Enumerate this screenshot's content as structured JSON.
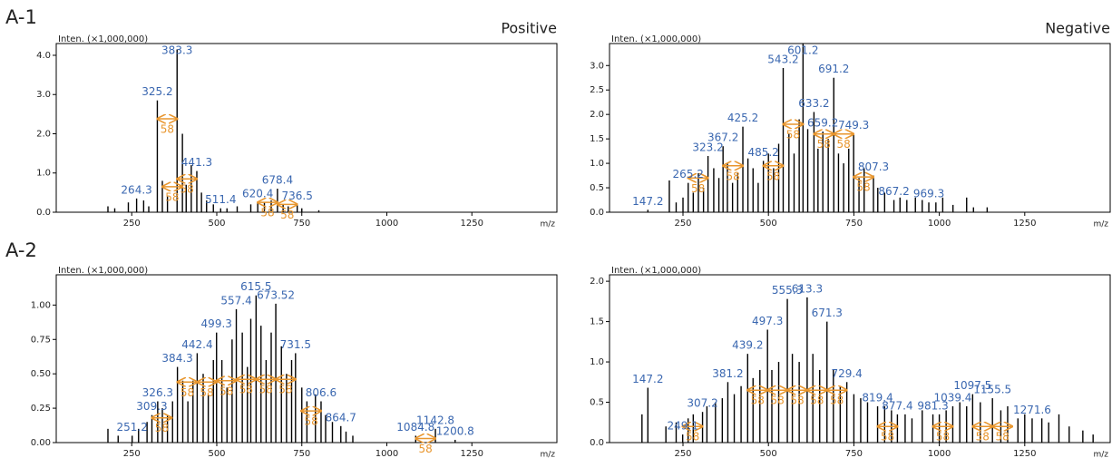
{
  "row_labels": [
    "A-1",
    "A-2"
  ],
  "column_labels": [
    "Positive",
    "Negative"
  ],
  "chart_data": [
    {
      "type": "bar",
      "ylabel": "Inten. (×1,000,000)",
      "xlabel": "m/z",
      "color": "#000000",
      "label_color": "#3a67b0",
      "arrow_color": "#e8962e",
      "xlim": [
        28,
        1500
      ],
      "xticks": [
        250,
        500,
        750,
        1000,
        1250
      ],
      "ylim": [
        0,
        4.3
      ],
      "yticks": [
        {
          "value": 0,
          "label": "0.0"
        },
        {
          "value": 1,
          "label": "1.0"
        },
        {
          "value": 2,
          "label": "2.0"
        },
        {
          "value": 3,
          "label": "3.0"
        },
        {
          "value": 4,
          "label": "4.0"
        }
      ],
      "peaks": {
        "x": [
          264.3,
          325.2,
          383.3,
          441.3,
          511.4,
          620.4,
          678.4,
          736.5
        ],
        "values": [
          0.35,
          2.85,
          4.15,
          1.05,
          0.1,
          0.25,
          0.6,
          0.2
        ]
      },
      "minor_peaks": {
        "x": [
          180,
          200,
          240,
          285,
          300,
          340,
          355,
          399,
          410,
          425,
          455,
          470,
          490,
          530,
          560,
          600,
          640,
          660,
          695,
          710,
          750,
          800
        ],
        "values": [
          0.15,
          0.1,
          0.25,
          0.3,
          0.15,
          0.8,
          0.4,
          2.0,
          0.7,
          1.2,
          0.5,
          0.3,
          0.2,
          0.1,
          0.15,
          0.2,
          0.25,
          0.3,
          0.2,
          0.15,
          0.1,
          0.05
        ]
      },
      "arrows": [
        {
          "from": 325.2,
          "to": 383.3,
          "y": 2.38,
          "label": 58
        },
        {
          "from": 383.3,
          "to": 441.3,
          "y": 0.85,
          "label": 58
        },
        {
          "from": 340,
          "to": 398,
          "y": 0.65,
          "label": 58
        },
        {
          "from": 620.4,
          "to": 678.4,
          "y": 0.25,
          "label": 58
        },
        {
          "from": 678.4,
          "to": 736.5,
          "y": 0.2,
          "label": 58
        }
      ]
    },
    {
      "type": "bar",
      "ylabel": "Inten. (×1,000,000)",
      "xlabel": "m/z",
      "color": "#000000",
      "label_color": "#3a67b0",
      "arrow_color": "#e8962e",
      "xlim": [
        35,
        1500
      ],
      "xticks": [
        250,
        500,
        750,
        1000,
        1250
      ],
      "ylim": [
        0,
        3.45
      ],
      "yticks": [
        {
          "value": 0,
          "label": "0.0"
        },
        {
          "value": 0.5,
          "label": "0.5"
        },
        {
          "value": 1,
          "label": "1.0"
        },
        {
          "value": 1.5,
          "label": "1.5"
        },
        {
          "value": 2,
          "label": "2.0"
        },
        {
          "value": 2.5,
          "label": "2.5"
        },
        {
          "value": 3,
          "label": "3.0"
        }
      ],
      "peaks": {
        "x": [
          147.2,
          265.2,
          323.2,
          367.2,
          425.2,
          485.2,
          543.2,
          601.2,
          633.2,
          659.2,
          691.2,
          749.3,
          807.3,
          867.2,
          969.3
        ],
        "values": [
          0.05,
          0.6,
          1.15,
          1.35,
          1.75,
          1.05,
          2.95,
          3.45,
          2.05,
          1.65,
          2.75,
          1.6,
          0.75,
          0.25,
          0.2
        ]
      },
      "minor_peaks": {
        "x": [
          210,
          230,
          250,
          280,
          295,
          310,
          340,
          355,
          380,
          395,
          410,
          440,
          455,
          470,
          500,
          515,
          530,
          560,
          575,
          590,
          615,
          645,
          675,
          705,
          720,
          735,
          765,
          780,
          820,
          840,
          885,
          905,
          930,
          950,
          990,
          1010,
          1040,
          1080,
          1100,
          1140
        ],
        "values": [
          0.65,
          0.2,
          0.3,
          0.4,
          0.8,
          0.5,
          0.9,
          0.7,
          1.0,
          0.6,
          0.8,
          1.1,
          0.9,
          0.6,
          1.2,
          0.9,
          1.4,
          1.6,
          1.2,
          1.9,
          1.7,
          1.3,
          1.5,
          1.2,
          1.0,
          1.3,
          0.7,
          0.9,
          0.5,
          0.4,
          0.3,
          0.25,
          0.3,
          0.25,
          0.2,
          0.3,
          0.15,
          0.3,
          0.1,
          0.1
        ]
      },
      "arrows": [
        {
          "from": 265.2,
          "to": 323.2,
          "y": 0.7,
          "label": 58
        },
        {
          "from": 367.2,
          "to": 425.2,
          "y": 0.95,
          "label": 58
        },
        {
          "from": 485.2,
          "to": 543.2,
          "y": 0.95,
          "label": 58
        },
        {
          "from": 543.2,
          "to": 601.2,
          "y": 1.8,
          "label": 58
        },
        {
          "from": 633.2,
          "to": 691.2,
          "y": 1.6,
          "label": 58
        },
        {
          "from": 691.2,
          "to": 749.3,
          "y": 1.6,
          "label": 58
        },
        {
          "from": 749.3,
          "to": 807.3,
          "y": 0.72,
          "label": 58
        }
      ]
    },
    {
      "type": "bar",
      "ylabel": "Inten. (×1,000,000)",
      "xlabel": "m/z",
      "color": "#000000",
      "label_color": "#3a67b0",
      "arrow_color": "#e8962e",
      "xlim": [
        28,
        1500
      ],
      "xticks": [
        250,
        500,
        750,
        1000,
        1250
      ],
      "ylim": [
        0,
        1.22
      ],
      "yticks": [
        {
          "value": 0,
          "label": "0.00"
        },
        {
          "value": 0.25,
          "label": "0.25"
        },
        {
          "value": 0.5,
          "label": "0.50"
        },
        {
          "value": 0.75,
          "label": "0.75"
        },
        {
          "value": 1,
          "label": "1.00"
        }
      ],
      "peaks": {
        "x": [
          251.2,
          309.3,
          326.3,
          384.3,
          442.4,
          499.3,
          557.4,
          615.5,
          673.52,
          731.5,
          806.6,
          864.7,
          1084.8,
          1142.8,
          1200.8
        ],
        "values": [
          0.05,
          0.2,
          0.3,
          0.55,
          0.65,
          0.8,
          0.97,
          1.07,
          1.01,
          0.65,
          0.3,
          0.12,
          0.05,
          0.1,
          0.02
        ]
      },
      "minor_peaks": {
        "x": [
          180,
          210,
          270,
          295,
          340,
          355,
          370,
          400,
          415,
          430,
          460,
          475,
          490,
          515,
          530,
          545,
          575,
          590,
          600,
          630,
          645,
          660,
          690,
          705,
          720,
          750,
          765,
          790,
          820,
          840,
          880,
          900
        ],
        "values": [
          0.1,
          0.05,
          0.1,
          0.15,
          0.25,
          0.2,
          0.3,
          0.45,
          0.3,
          0.45,
          0.5,
          0.35,
          0.6,
          0.6,
          0.4,
          0.75,
          0.8,
          0.55,
          0.9,
          0.85,
          0.6,
          0.8,
          0.7,
          0.5,
          0.6,
          0.4,
          0.3,
          0.35,
          0.2,
          0.15,
          0.08,
          0.05
        ]
      },
      "arrows": [
        {
          "from": 309.3,
          "to": 367.3,
          "y": 0.18,
          "label": 58
        },
        {
          "from": 384.3,
          "to": 442.4,
          "y": 0.44,
          "label": 58
        },
        {
          "from": 442.4,
          "to": 499.3,
          "y": 0.44,
          "label": 58
        },
        {
          "from": 499.3,
          "to": 557.4,
          "y": 0.45,
          "label": 58
        },
        {
          "from": 557.4,
          "to": 615.5,
          "y": 0.46,
          "label": 58
        },
        {
          "from": 615.5,
          "to": 673.52,
          "y": 0.46,
          "label": 58
        },
        {
          "from": 673.52,
          "to": 731.5,
          "y": 0.46,
          "label": 58
        },
        {
          "from": 748.6,
          "to": 806.6,
          "y": 0.23,
          "label": 58
        },
        {
          "from": 1084.8,
          "to": 1142.8,
          "y": 0.03,
          "label": 58
        }
      ]
    },
    {
      "type": "bar",
      "ylabel": "Inten. (×1,000,000)",
      "xlabel": "m/z",
      "color": "#000000",
      "label_color": "#3a67b0",
      "arrow_color": "#e8962e",
      "xlim": [
        35,
        1500
      ],
      "xticks": [
        250,
        500,
        750,
        1000,
        1250
      ],
      "ylim": [
        0,
        2.08
      ],
      "yticks": [
        {
          "value": 0,
          "label": "0.0"
        },
        {
          "value": 0.5,
          "label": "0.5"
        },
        {
          "value": 1,
          "label": "1.0"
        },
        {
          "value": 1.5,
          "label": "1.5"
        },
        {
          "value": 2,
          "label": "2.0"
        }
      ],
      "peaks": {
        "x": [
          147.2,
          249.1,
          307.2,
          381.2,
          439.2,
          497.3,
          555.3,
          613.3,
          671.3,
          729.4,
          819.4,
          877.4,
          981.3,
          1039.4,
          1097.5,
          1155.5,
          1271.6
        ],
        "values": [
          0.68,
          0.1,
          0.38,
          0.75,
          1.1,
          1.4,
          1.78,
          1.8,
          1.5,
          0.75,
          0.45,
          0.35,
          0.35,
          0.45,
          0.6,
          0.55,
          0.3
        ]
      },
      "minor_peaks": {
        "x": [
          130,
          200,
          230,
          265,
          280,
          320,
          345,
          365,
          400,
          420,
          455,
          475,
          510,
          530,
          570,
          590,
          630,
          650,
          690,
          710,
          750,
          770,
          790,
          840,
          860,
          900,
          920,
          950,
          1000,
          1020,
          1060,
          1080,
          1120,
          1180,
          1200,
          1230,
          1250,
          1300,
          1320,
          1350,
          1380,
          1420,
          1450
        ],
        "values": [
          0.35,
          0.2,
          0.25,
          0.3,
          0.35,
          0.45,
          0.5,
          0.55,
          0.6,
          0.7,
          0.8,
          0.9,
          0.9,
          1.0,
          1.1,
          1.0,
          1.1,
          0.9,
          0.9,
          0.7,
          0.6,
          0.55,
          0.5,
          0.45,
          0.4,
          0.35,
          0.3,
          0.4,
          0.35,
          0.4,
          0.5,
          0.45,
          0.5,
          0.4,
          0.45,
          0.3,
          0.35,
          0.3,
          0.25,
          0.35,
          0.2,
          0.15,
          0.1
        ]
      },
      "arrows": [
        {
          "from": 249.1,
          "to": 307.2,
          "y": 0.2,
          "label": 58
        },
        {
          "from": 439.2,
          "to": 497.3,
          "y": 0.65,
          "label": 58
        },
        {
          "from": 497.3,
          "to": 555.3,
          "y": 0.65,
          "label": 58
        },
        {
          "from": 555.3,
          "to": 613.3,
          "y": 0.65,
          "label": 58
        },
        {
          "from": 613.3,
          "to": 671.3,
          "y": 0.65,
          "label": 58
        },
        {
          "from": 671.3,
          "to": 729.4,
          "y": 0.65,
          "label": 58
        },
        {
          "from": 819.4,
          "to": 877.4,
          "y": 0.2,
          "label": 58
        },
        {
          "from": 981.3,
          "to": 1039.4,
          "y": 0.2,
          "label": 58
        },
        {
          "from": 1097.5,
          "to": 1155.5,
          "y": 0.2,
          "label": 58
        },
        {
          "from": 1155.5,
          "to": 1213.6,
          "y": 0.2,
          "label": 58
        }
      ]
    }
  ]
}
